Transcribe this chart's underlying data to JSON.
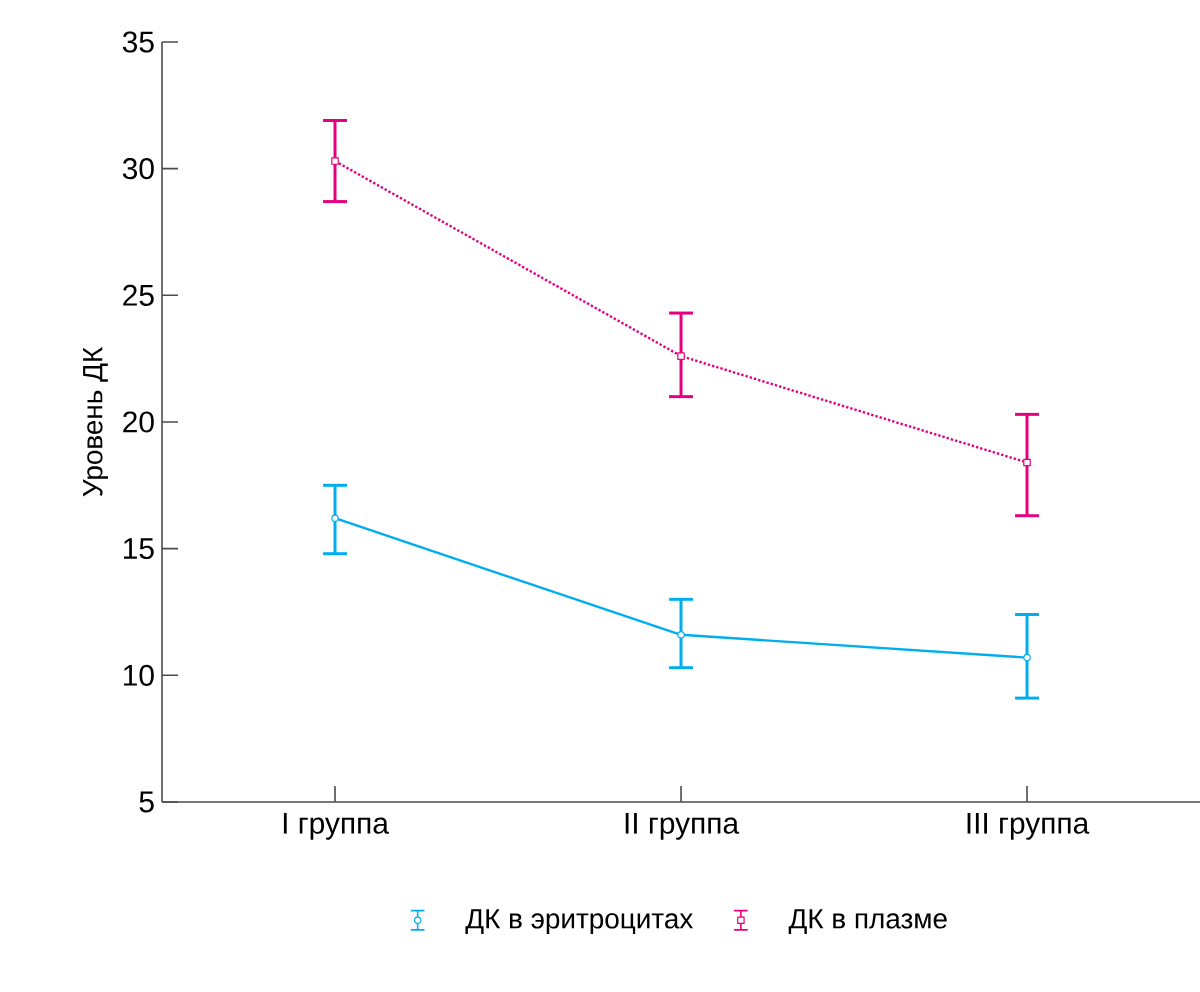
{
  "chart_data": {
    "type": "line",
    "ylabel": "Уровень ДК",
    "categories": [
      "I группа",
      "II группа",
      "III группа"
    ],
    "series": [
      {
        "name": "ДК в эритроцитах",
        "color": "#00aeef",
        "values": [
          16.2,
          11.6,
          10.7
        ],
        "errors": [
          [
            14.8,
            17.5
          ],
          [
            10.3,
            13.0
          ],
          [
            9.1,
            12.4
          ]
        ],
        "marker": "circle",
        "line_style": "solid"
      },
      {
        "name": "ДК в плазме",
        "color": "#e6007e",
        "values": [
          30.3,
          22.6,
          18.4
        ],
        "errors": [
          [
            28.7,
            31.9
          ],
          [
            21.0,
            24.3
          ],
          [
            16.3,
            20.3
          ]
        ],
        "marker": "square",
        "line_style": "dotted"
      }
    ],
    "ylim": [
      5,
      35
    ],
    "yticks": [
      5,
      10,
      15,
      20,
      25,
      30,
      35
    ],
    "grid": false,
    "legend": "bottom"
  }
}
